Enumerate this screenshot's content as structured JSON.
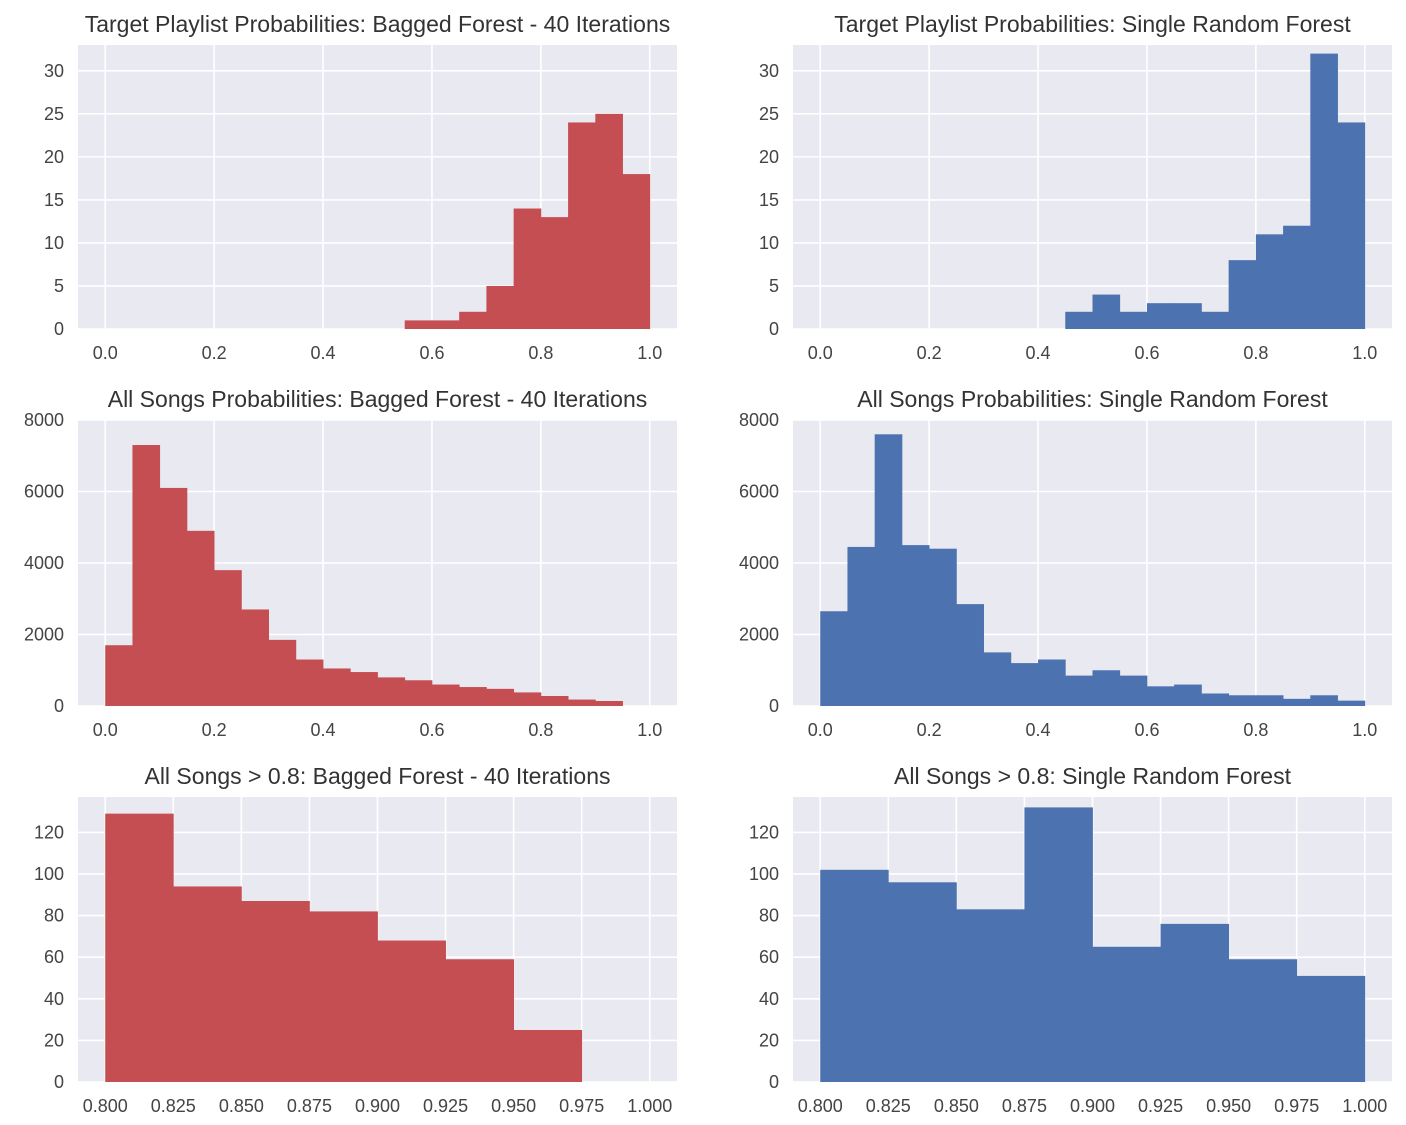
{
  "colors": {
    "bagged": "#c44e52",
    "single": "#4c72b0",
    "axes_bg": "#e9e9f1",
    "grid": "#ffffff"
  },
  "chart_data": [
    {
      "type": "bar",
      "title": "Target Playlist Probabilities: Bagged Forest - 40 Iterations",
      "xlabel": "",
      "ylabel": "",
      "xlim": [
        -0.05,
        1.05
      ],
      "ylim": [
        0,
        33
      ],
      "xticks": [
        0.0,
        0.2,
        0.4,
        0.6,
        0.8,
        1.0
      ],
      "xtick_labels": [
        "0.0",
        "0.2",
        "0.4",
        "0.6",
        "0.8",
        "1.0"
      ],
      "yticks": [
        0,
        5,
        10,
        15,
        20,
        25,
        30
      ],
      "ytick_labels": [
        "0",
        "5",
        "10",
        "15",
        "20",
        "25",
        "30"
      ],
      "color": "bagged",
      "grid": true,
      "bin_edges": [
        0.55,
        0.6,
        0.65,
        0.7,
        0.75,
        0.8,
        0.85,
        0.9,
        0.95,
        1.0
      ],
      "values": [
        1,
        1,
        2,
        5,
        14,
        13,
        24,
        25,
        18
      ]
    },
    {
      "type": "bar",
      "title": "Target Playlist Probabilities: Single Random Forest",
      "xlabel": "",
      "ylabel": "",
      "xlim": [
        -0.05,
        1.05
      ],
      "ylim": [
        0,
        33
      ],
      "xticks": [
        0.0,
        0.2,
        0.4,
        0.6,
        0.8,
        1.0
      ],
      "xtick_labels": [
        "0.0",
        "0.2",
        "0.4",
        "0.6",
        "0.8",
        "1.0"
      ],
      "yticks": [
        0,
        5,
        10,
        15,
        20,
        25,
        30
      ],
      "ytick_labels": [
        "0",
        "5",
        "10",
        "15",
        "20",
        "25",
        "30"
      ],
      "color": "single",
      "grid": true,
      "bin_edges": [
        0.45,
        0.5,
        0.55,
        0.6,
        0.65,
        0.7,
        0.75,
        0.8,
        0.85,
        0.9,
        0.95,
        1.0
      ],
      "values": [
        2,
        4,
        2,
        3,
        3,
        2,
        8,
        11,
        12,
        32,
        24
      ]
    },
    {
      "type": "bar",
      "title": "All Songs Probabilities: Bagged Forest - 40 Iterations",
      "xlabel": "",
      "ylabel": "",
      "xlim": [
        -0.05,
        1.05
      ],
      "ylim": [
        0,
        8000
      ],
      "xticks": [
        0.0,
        0.2,
        0.4,
        0.6,
        0.8,
        1.0
      ],
      "xtick_labels": [
        "0.0",
        "0.2",
        "0.4",
        "0.6",
        "0.8",
        "1.0"
      ],
      "yticks": [
        0,
        2000,
        4000,
        6000,
        8000
      ],
      "ytick_labels": [
        "0",
        "2000",
        "4000",
        "6000",
        "8000"
      ],
      "color": "bagged",
      "grid": true,
      "bin_edges": [
        0.0,
        0.05,
        0.1,
        0.15,
        0.2,
        0.25,
        0.3,
        0.35,
        0.4,
        0.45,
        0.5,
        0.55,
        0.6,
        0.65,
        0.7,
        0.75,
        0.8,
        0.85,
        0.9,
        0.95
      ],
      "values": [
        1700,
        7300,
        6100,
        4900,
        3800,
        2700,
        1850,
        1300,
        1050,
        950,
        800,
        720,
        600,
        530,
        480,
        380,
        280,
        180,
        140
      ]
    },
    {
      "type": "bar",
      "title": "All Songs Probabilities: Single Random Forest",
      "xlabel": "",
      "ylabel": "",
      "xlim": [
        -0.05,
        1.05
      ],
      "ylim": [
        0,
        8000
      ],
      "xticks": [
        0.0,
        0.2,
        0.4,
        0.6,
        0.8,
        1.0
      ],
      "xtick_labels": [
        "0.0",
        "0.2",
        "0.4",
        "0.6",
        "0.8",
        "1.0"
      ],
      "yticks": [
        0,
        2000,
        4000,
        6000,
        8000
      ],
      "ytick_labels": [
        "0",
        "2000",
        "4000",
        "6000",
        "8000"
      ],
      "color": "single",
      "grid": true,
      "bin_edges": [
        0.0,
        0.05,
        0.1,
        0.15,
        0.2,
        0.25,
        0.3,
        0.35,
        0.4,
        0.45,
        0.5,
        0.55,
        0.6,
        0.65,
        0.7,
        0.75,
        0.8,
        0.85,
        0.9,
        0.95,
        1.0
      ],
      "values": [
        2650,
        4450,
        7600,
        4500,
        4400,
        2850,
        1500,
        1200,
        1300,
        850,
        1000,
        850,
        550,
        600,
        350,
        300,
        300,
        200,
        300,
        150
      ]
    },
    {
      "type": "bar",
      "title": "All Songs > 0.8: Bagged Forest - 40 Iterations",
      "xlabel": "",
      "ylabel": "",
      "xlim": [
        0.79,
        1.01
      ],
      "ylim": [
        0,
        137
      ],
      "xticks": [
        0.8,
        0.825,
        0.85,
        0.875,
        0.9,
        0.925,
        0.95,
        0.975,
        1.0
      ],
      "xtick_labels": [
        "0.800",
        "0.825",
        "0.850",
        "0.875",
        "0.900",
        "0.925",
        "0.950",
        "0.975",
        "1.000"
      ],
      "yticks": [
        0,
        20,
        40,
        60,
        80,
        100,
        120
      ],
      "ytick_labels": [
        "0",
        "20",
        "40",
        "60",
        "80",
        "100",
        "120"
      ],
      "color": "bagged",
      "grid": true,
      "bin_edges": [
        0.8,
        0.825,
        0.85,
        0.875,
        0.9,
        0.925,
        0.95,
        0.975
      ],
      "values": [
        129,
        94,
        87,
        82,
        68,
        59,
        25
      ]
    },
    {
      "type": "bar",
      "title": "All Songs > 0.8: Single Random Forest",
      "xlabel": "",
      "ylabel": "",
      "xlim": [
        0.79,
        1.01
      ],
      "ylim": [
        0,
        137
      ],
      "xticks": [
        0.8,
        0.825,
        0.85,
        0.875,
        0.9,
        0.925,
        0.95,
        0.975,
        1.0
      ],
      "xtick_labels": [
        "0.800",
        "0.825",
        "0.850",
        "0.875",
        "0.900",
        "0.925",
        "0.950",
        "0.975",
        "1.000"
      ],
      "yticks": [
        0,
        20,
        40,
        60,
        80,
        100,
        120
      ],
      "ytick_labels": [
        "0",
        "20",
        "40",
        "60",
        "80",
        "100",
        "120"
      ],
      "color": "single",
      "grid": true,
      "bin_edges": [
        0.8,
        0.825,
        0.85,
        0.875,
        0.9,
        0.925,
        0.95,
        0.975,
        1.0
      ],
      "values": [
        102,
        96,
        83,
        132,
        65,
        76,
        59,
        51
      ]
    }
  ]
}
